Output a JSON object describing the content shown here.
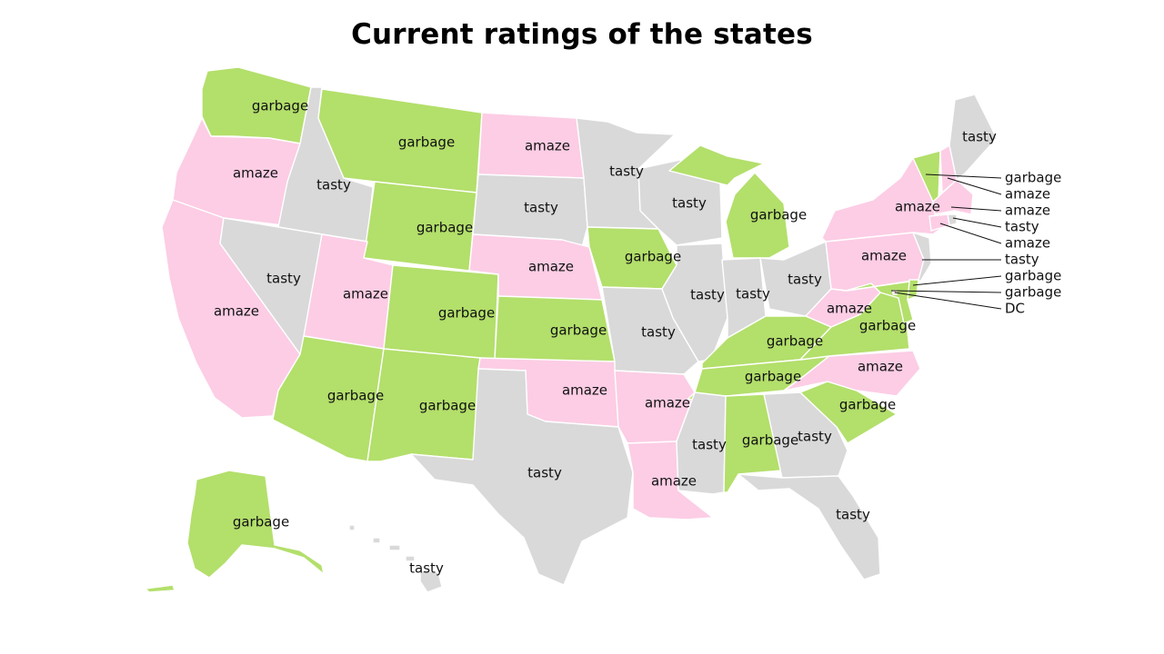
{
  "title": "Current ratings of the states",
  "colors": {
    "garbage": "#b3df6b",
    "amaze": "#fccde5",
    "tasty": "#d9d9d9",
    "text": "#111111",
    "background": "#ffffff"
  },
  "states": [
    {
      "name": "Washington",
      "rating": "garbage",
      "label": "garbage"
    },
    {
      "name": "Oregon",
      "rating": "amaze",
      "label": "amaze"
    },
    {
      "name": "California",
      "rating": "amaze",
      "label": "amaze"
    },
    {
      "name": "Idaho",
      "rating": "tasty",
      "label": "tasty"
    },
    {
      "name": "Nevada",
      "rating": "tasty",
      "label": "tasty"
    },
    {
      "name": "Montana",
      "rating": "garbage",
      "label": "garbage"
    },
    {
      "name": "Wyoming",
      "rating": "garbage",
      "label": "garbage"
    },
    {
      "name": "Utah",
      "rating": "amaze",
      "label": "amaze"
    },
    {
      "name": "Arizona",
      "rating": "garbage",
      "label": "garbage"
    },
    {
      "name": "Colorado",
      "rating": "garbage",
      "label": "garbage"
    },
    {
      "name": "New Mexico",
      "rating": "garbage",
      "label": "garbage"
    },
    {
      "name": "North Dakota",
      "rating": "amaze",
      "label": "amaze"
    },
    {
      "name": "South Dakota",
      "rating": "tasty",
      "label": "tasty"
    },
    {
      "name": "Nebraska",
      "rating": "amaze",
      "label": "amaze"
    },
    {
      "name": "Kansas",
      "rating": "garbage",
      "label": "garbage"
    },
    {
      "name": "Oklahoma",
      "rating": "amaze",
      "label": "amaze"
    },
    {
      "name": "Texas",
      "rating": "tasty",
      "label": "tasty"
    },
    {
      "name": "Minnesota",
      "rating": "tasty",
      "label": "tasty"
    },
    {
      "name": "Iowa",
      "rating": "garbage",
      "label": "garbage"
    },
    {
      "name": "Missouri",
      "rating": "tasty",
      "label": "tasty"
    },
    {
      "name": "Arkansas",
      "rating": "amaze",
      "label": "amaze"
    },
    {
      "name": "Louisiana",
      "rating": "amaze",
      "label": "amaze"
    },
    {
      "name": "Wisconsin",
      "rating": "tasty",
      "label": "tasty"
    },
    {
      "name": "Illinois",
      "rating": "tasty",
      "label": "tasty"
    },
    {
      "name": "Michigan",
      "rating": "garbage",
      "label": "garbage"
    },
    {
      "name": "Indiana",
      "rating": "tasty",
      "label": "tasty"
    },
    {
      "name": "Ohio",
      "rating": "tasty",
      "label": "tasty"
    },
    {
      "name": "Kentucky",
      "rating": "garbage",
      "label": "garbage"
    },
    {
      "name": "Tennessee",
      "rating": "garbage",
      "label": "garbage"
    },
    {
      "name": "Mississippi",
      "rating": "tasty",
      "label": "tasty"
    },
    {
      "name": "Alabama",
      "rating": "garbage",
      "label": "garbage"
    },
    {
      "name": "Georgia",
      "rating": "tasty",
      "label": "tasty"
    },
    {
      "name": "Florida",
      "rating": "tasty",
      "label": "tasty"
    },
    {
      "name": "South Carolina",
      "rating": "garbage",
      "label": "garbage"
    },
    {
      "name": "North Carolina",
      "rating": "amaze",
      "label": "amaze"
    },
    {
      "name": "Virginia",
      "rating": "garbage",
      "label": "garbage"
    },
    {
      "name": "West Virginia",
      "rating": "amaze",
      "label": "amaze"
    },
    {
      "name": "Pennsylvania",
      "rating": "amaze",
      "label": "amaze"
    },
    {
      "name": "New York",
      "rating": "amaze",
      "label": "amaze"
    },
    {
      "name": "Vermont",
      "rating": "garbage",
      "label": "garbage"
    },
    {
      "name": "New Hampshire",
      "rating": "amaze",
      "label": "amaze"
    },
    {
      "name": "Maine",
      "rating": "tasty",
      "label": "tasty"
    },
    {
      "name": "Massachusetts",
      "rating": "amaze",
      "label": "amaze"
    },
    {
      "name": "Rhode Island",
      "rating": "tasty",
      "label": "tasty"
    },
    {
      "name": "Connecticut",
      "rating": "amaze",
      "label": "amaze"
    },
    {
      "name": "New Jersey",
      "rating": "tasty",
      "label": "tasty"
    },
    {
      "name": "Delaware",
      "rating": "garbage",
      "label": "garbage"
    },
    {
      "name": "Maryland",
      "rating": "garbage",
      "label": "garbage"
    },
    {
      "name": "District of Columbia",
      "rating": "amaze",
      "label": "DC"
    },
    {
      "name": "Alaska",
      "rating": "garbage",
      "label": "garbage"
    },
    {
      "name": "Hawaii",
      "rating": "tasty",
      "label": "tasty"
    }
  ]
}
